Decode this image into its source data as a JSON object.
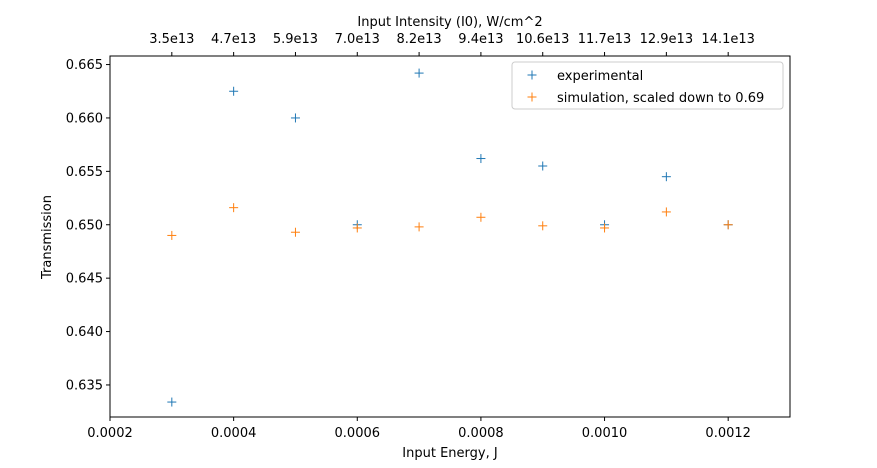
{
  "chart_data": {
    "type": "scatter",
    "title": "",
    "xlabel": "Input Energy, J",
    "ylabel": "Transmission",
    "top_xlabel": "Input Intensity (I0), W/cm^2",
    "xlim": [
      0.0002,
      0.0013
    ],
    "ylim": [
      0.632,
      0.6658
    ],
    "xticks": [
      0.0002,
      0.0004,
      0.0006,
      0.0008,
      0.001,
      0.0012
    ],
    "xtick_labels": [
      "0.0002",
      "0.0004",
      "0.0006",
      "0.0008",
      "0.0010",
      "0.0012"
    ],
    "yticks": [
      0.635,
      0.64,
      0.645,
      0.65,
      0.655,
      0.66,
      0.665
    ],
    "ytick_labels": [
      "0.635",
      "0.640",
      "0.645",
      "0.650",
      "0.655",
      "0.660",
      "0.665"
    ],
    "top_xticks": [
      0.0003,
      0.0004,
      0.0005,
      0.0006,
      0.0007,
      0.0008,
      0.0009,
      0.001,
      0.0011,
      0.0012
    ],
    "top_xtick_labels": [
      "3.5e13",
      "4.7e13",
      "5.9e13",
      "7.0e13",
      "8.2e13",
      "9.4e13",
      "10.6e13",
      "11.7e13",
      "12.9e13",
      "14.1e13"
    ],
    "grid": false,
    "legend": "top-right",
    "series": [
      {
        "name": "experimental",
        "color": "#1f77b4",
        "marker": "+",
        "x": [
          0.0003,
          0.0004,
          0.0005,
          0.0006,
          0.0007,
          0.0008,
          0.0009,
          0.001,
          0.0011,
          0.0012
        ],
        "y": [
          0.6334,
          0.6625,
          0.66,
          0.65,
          0.6642,
          0.6562,
          0.6555,
          0.65,
          0.6545,
          0.65
        ]
      },
      {
        "name": "simulation, scaled down to 0.69",
        "color": "#ff7f0e",
        "marker": "+",
        "x": [
          0.0003,
          0.0004,
          0.0005,
          0.0006,
          0.0007,
          0.0008,
          0.0009,
          0.001,
          0.0011,
          0.0012
        ],
        "y": [
          0.649,
          0.6516,
          0.6493,
          0.6497,
          0.6498,
          0.6507,
          0.6499,
          0.6497,
          0.6512,
          0.65
        ]
      }
    ]
  }
}
